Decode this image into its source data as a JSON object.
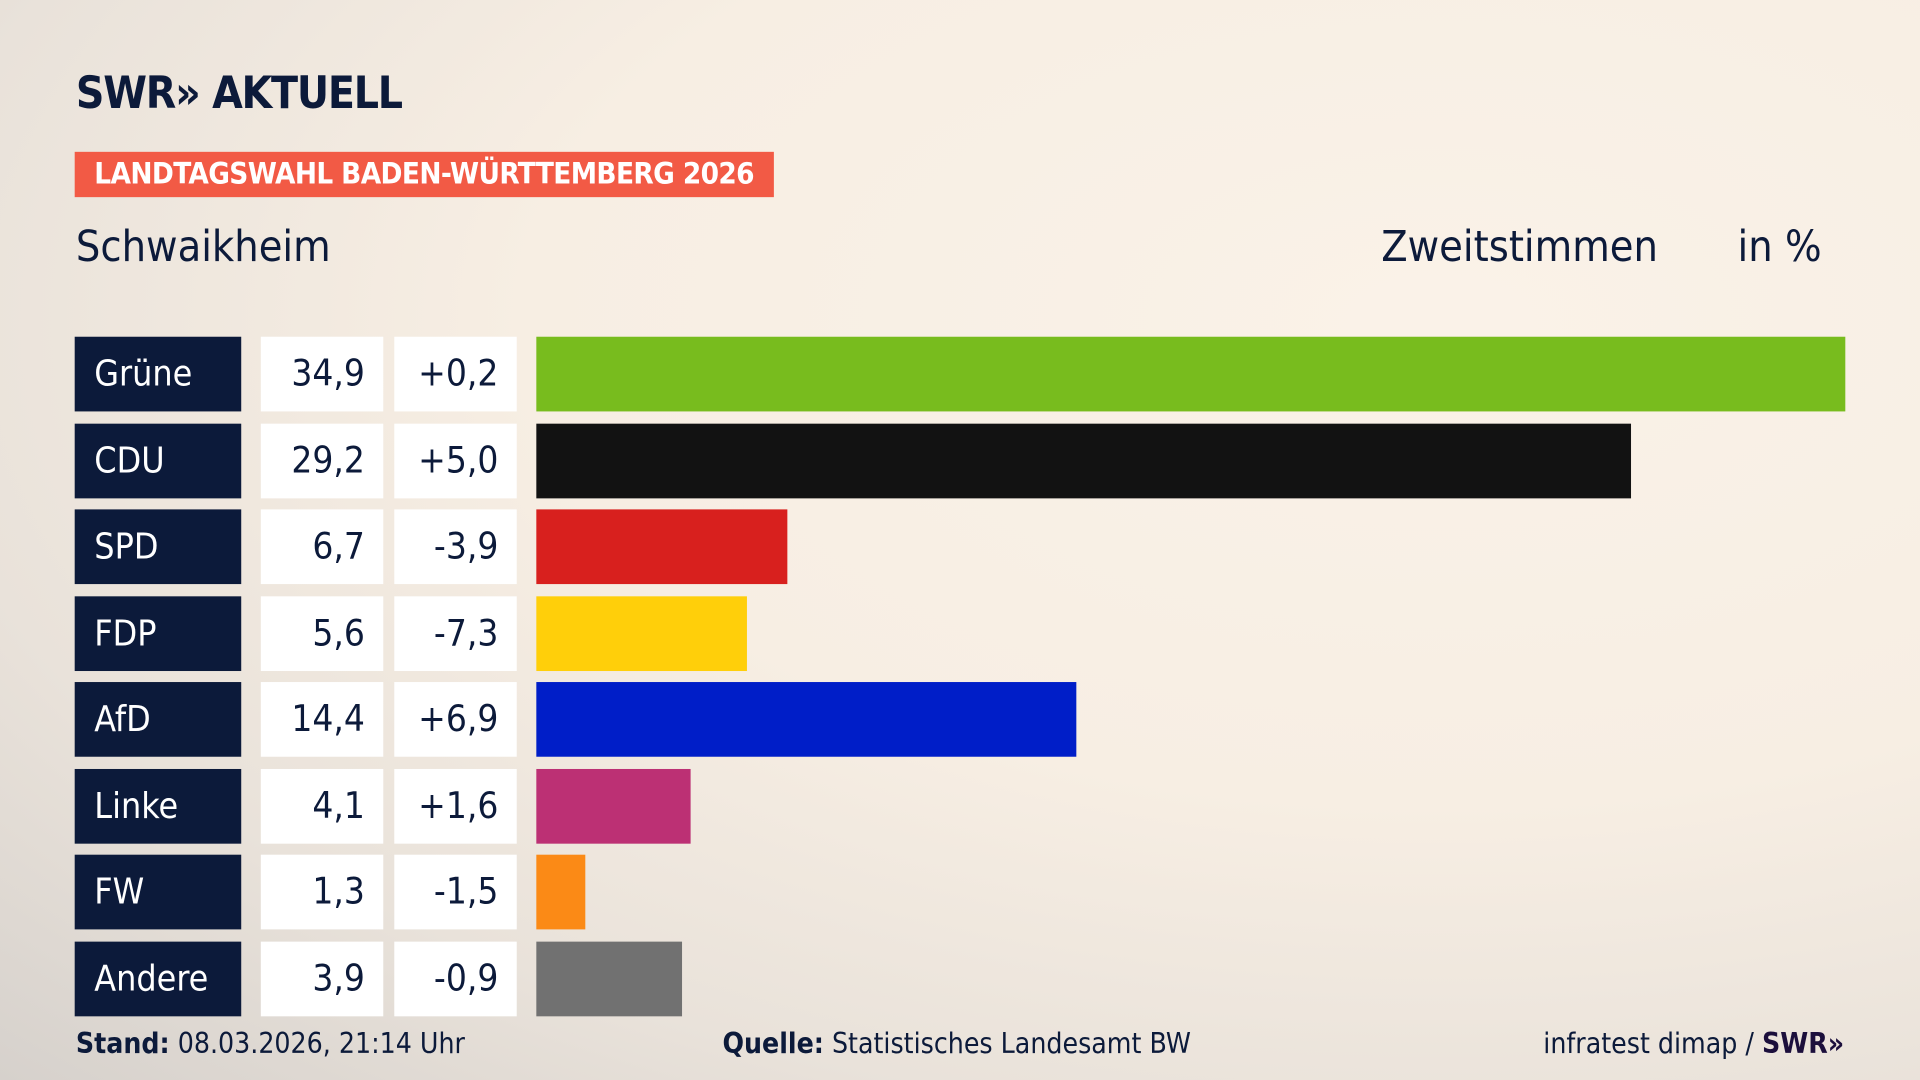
{
  "header": {
    "logo_text": "SWR» AKTUELL",
    "badge": "LANDTAGSWAHL BADEN-WÜRTTEMBERG 2026",
    "region": "Schwaikheim",
    "metric": "Zweitstimmen",
    "unit": "in %"
  },
  "chart_data": {
    "type": "bar",
    "orientation": "horizontal",
    "categories": [
      "Grüne",
      "CDU",
      "SPD",
      "FDP",
      "AfD",
      "Linke",
      "FW",
      "Andere"
    ],
    "values": [
      34.9,
      29.2,
      6.7,
      5.6,
      14.4,
      4.1,
      1.3,
      3.9
    ],
    "value_labels": [
      "34,9",
      "29,2",
      "6,7",
      "5,6",
      "14,4",
      "4,1",
      "1,3",
      "3,9"
    ],
    "diff_labels": [
      "+0,2",
      "+5,0",
      "-3,9",
      "-7,3",
      "+6,9",
      "+1,6",
      "-1,5",
      "-0,9"
    ],
    "colors": [
      "#78bc1e",
      "#121212",
      "#d8201e",
      "#ffcf0a",
      "#001ec8",
      "#bc3074",
      "#fb8a16",
      "#717171"
    ],
    "xlim": [
      0,
      34.9
    ]
  },
  "footer": {
    "stand_label": "Stand:",
    "stand_value": "08.03.2026, 21:14 Uhr",
    "source_label": "Quelle:",
    "source_value": "Statistisches Landesamt BW",
    "credit": "infratest dimap / ",
    "credit_logo": "SWR»"
  }
}
